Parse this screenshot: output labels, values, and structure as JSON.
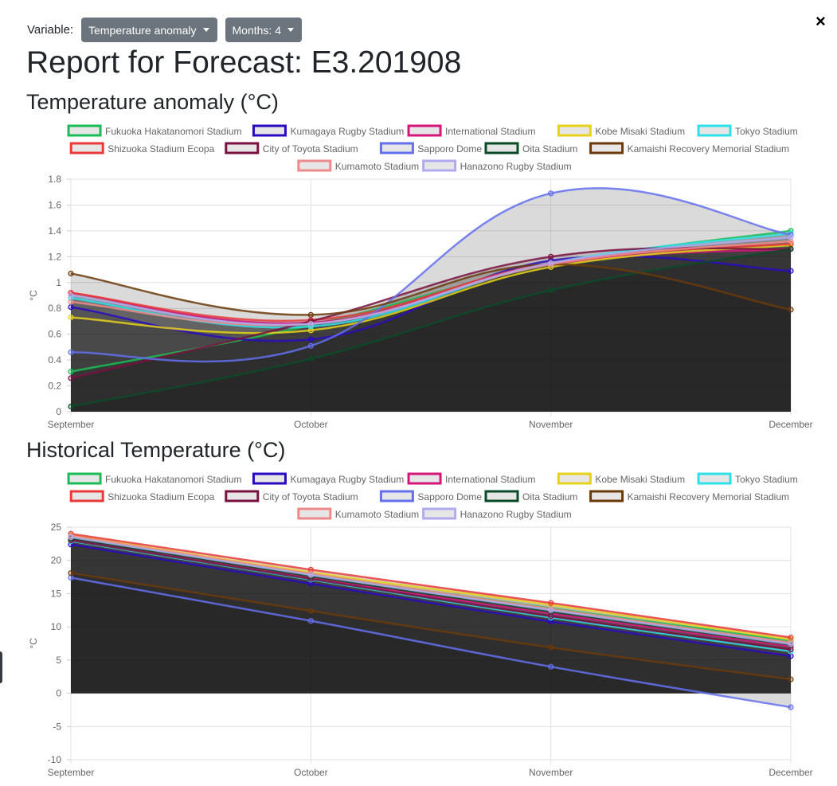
{
  "toolbar": {
    "variable_label": "Variable:",
    "variable_value": "Temperature anomaly",
    "months_value": "Months: 4"
  },
  "close_label": "×",
  "report_title": "Report for Forecast: E3.201908",
  "chart_data": [
    {
      "type": "line",
      "title": "Temperature anomaly (°C)",
      "ylabel": "°C",
      "x": [
        "September",
        "October",
        "November",
        "December"
      ],
      "ylim": [
        0,
        1.8
      ],
      "yticks": [
        0,
        0.2,
        0.4,
        0.6,
        0.8,
        1.0,
        1.2,
        1.4,
        1.6,
        1.8
      ],
      "grid": true,
      "legend": "top",
      "series": [
        {
          "name": "Fukuoka Hakatanomori Stadium",
          "color": "#1abc55",
          "values": [
            0.31,
            0.67,
            1.14,
            1.4
          ]
        },
        {
          "name": "Kumagaya Rugby Stadium",
          "color": "#2a0ac0",
          "values": [
            0.81,
            0.56,
            1.17,
            1.09
          ]
        },
        {
          "name": "International Stadium",
          "color": "#d4157a",
          "values": [
            0.92,
            0.69,
            1.14,
            1.26
          ]
        },
        {
          "name": "Kobe Misaki Stadium",
          "color": "#e6d21a",
          "values": [
            0.73,
            0.63,
            1.12,
            1.29
          ]
        },
        {
          "name": "Tokyo Stadium",
          "color": "#2ee0e8",
          "values": [
            0.88,
            0.66,
            1.15,
            1.38
          ]
        },
        {
          "name": "Shizuoka Stadium Ecopa",
          "color": "#e83a3a",
          "values": [
            0.92,
            0.71,
            1.15,
            1.3
          ]
        },
        {
          "name": "City of Toyota Stadium",
          "color": "#7a1040",
          "values": [
            0.26,
            0.7,
            1.2,
            1.26
          ]
        },
        {
          "name": "Sapporo Dome",
          "color": "#6470ee",
          "values": [
            0.46,
            0.51,
            1.69,
            1.37
          ]
        },
        {
          "name": "Oita Stadium",
          "color": "#0a4a28",
          "values": [
            0.04,
            0.41,
            0.94,
            1.26
          ]
        },
        {
          "name": "Kamaishi Recovery Memorial Stadium",
          "color": "#6b3a0a",
          "values": [
            1.07,
            0.75,
            1.14,
            0.79
          ]
        },
        {
          "name": "Kumamoto Stadium",
          "color": "#ee8a8a",
          "values": [
            0.85,
            0.68,
            1.14,
            1.32
          ]
        },
        {
          "name": "Hanazono Rugby Stadium",
          "color": "#b0aaee",
          "values": [
            0.9,
            0.68,
            1.15,
            1.35
          ]
        }
      ]
    },
    {
      "type": "line",
      "title": "Historical Temperature (°C)",
      "ylabel": "°C",
      "x": [
        "September",
        "October",
        "November",
        "December"
      ],
      "ylim": [
        -10,
        25
      ],
      "yticks": [
        -10,
        -5,
        0,
        5,
        10,
        15,
        20,
        25
      ],
      "grid": true,
      "legend": "top",
      "series": [
        {
          "name": "Fukuoka Hakatanomori Stadium",
          "color": "#1abc55",
          "values": [
            23.4,
            17.9,
            12.8,
            7.9
          ]
        },
        {
          "name": "Kumagaya Rugby Stadium",
          "color": "#2a0ac0",
          "values": [
            22.4,
            16.5,
            10.8,
            5.6
          ]
        },
        {
          "name": "International Stadium",
          "color": "#d4157a",
          "values": [
            23.2,
            17.4,
            12.0,
            7.0
          ]
        },
        {
          "name": "Kobe Misaki Stadium",
          "color": "#e6d21a",
          "values": [
            23.8,
            18.2,
            13.3,
            8.1
          ]
        },
        {
          "name": "Tokyo Stadium",
          "color": "#2ee0e8",
          "values": [
            22.9,
            17.1,
            11.4,
            6.3
          ]
        },
        {
          "name": "Shizuoka Stadium Ecopa",
          "color": "#e83a3a",
          "values": [
            24.0,
            18.6,
            13.6,
            8.4
          ]
        },
        {
          "name": "City of Toyota Stadium",
          "color": "#7a1040",
          "values": [
            23.0,
            17.2,
            11.6,
            6.6
          ]
        },
        {
          "name": "Sapporo Dome",
          "color": "#6470ee",
          "values": [
            17.4,
            10.9,
            4.0,
            -2.1
          ]
        },
        {
          "name": "Oita Stadium",
          "color": "#0a4a28",
          "values": [
            23.3,
            17.6,
            12.3,
            7.3
          ]
        },
        {
          "name": "Kamaishi Recovery Memorial Stadium",
          "color": "#6b3a0a",
          "values": [
            18.1,
            12.4,
            6.9,
            2.1
          ]
        },
        {
          "name": "Kumamoto Stadium",
          "color": "#ee8a8a",
          "values": [
            23.7,
            18.0,
            12.7,
            7.6
          ]
        },
        {
          "name": "Hanazono Rugby Stadium",
          "color": "#b0aaee",
          "values": [
            23.5,
            17.8,
            12.5,
            7.4
          ]
        }
      ]
    }
  ]
}
